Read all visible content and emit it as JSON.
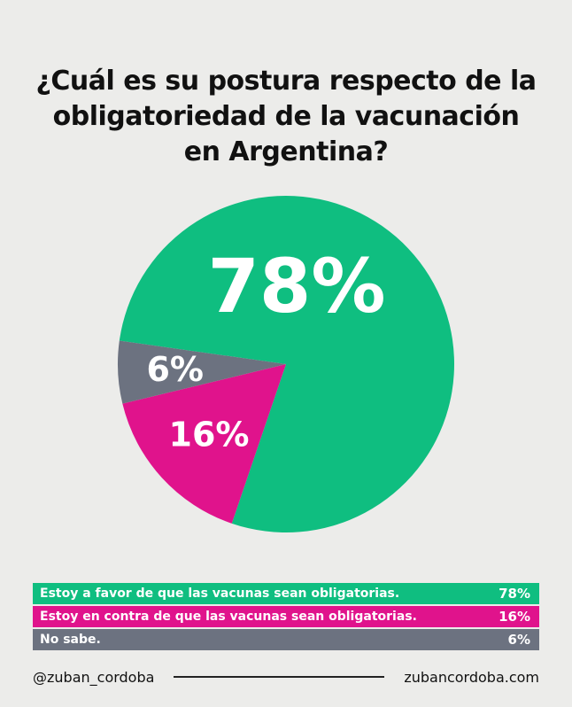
{
  "title_lines": [
    "¿Cuál es su postura respecto de la",
    "obligatoriedad de la vacunación",
    "en Argentina?"
  ],
  "chart_data": {
    "type": "pie",
    "unit": "%",
    "slices": [
      {
        "label": "Estoy a favor de que las vacunas sean obligatorias.",
        "value": 78,
        "display": "78%",
        "color": "#0fbe80"
      },
      {
        "label": "Estoy en contra de que las vacunas sean obligatorias.",
        "value": 16,
        "display": "16%",
        "color": "#e0138c"
      },
      {
        "label": "No sabe.",
        "value": 6,
        "display": "6%",
        "color": "#6c7280"
      }
    ]
  },
  "footer": {
    "handle": "@zuban_cordoba",
    "website": "zubancordoba.com"
  }
}
